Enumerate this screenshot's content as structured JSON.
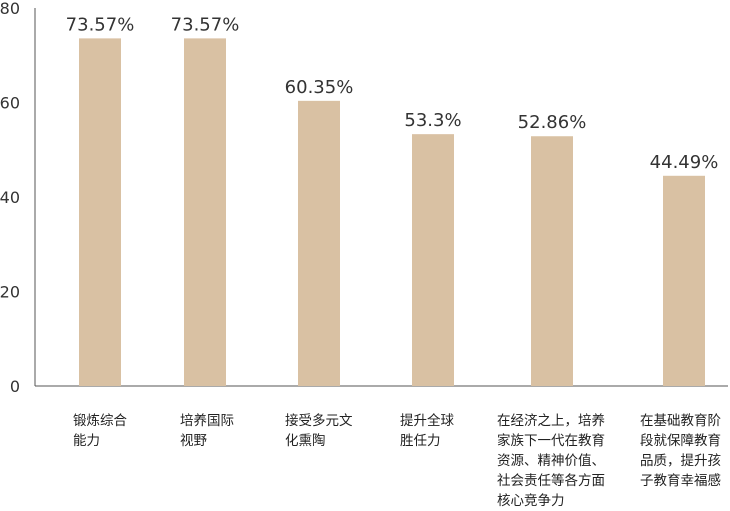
{
  "chart_data": {
    "type": "bar",
    "categories": [
      "锻炼综合能力",
      "培养国际视野",
      "接受多元文化熏陶",
      "提升全球胜任力",
      "在经济之上，培养家族下一代在教育资源、精神价值、社会责任等各方面核心竞争力",
      "在基础教育阶段就保障教育品质，提升孩子教育幸福感"
    ],
    "values": [
      73.57,
      73.57,
      60.35,
      53.3,
      52.86,
      44.49
    ],
    "value_labels": [
      "73.57%",
      "73.57%",
      "60.35%",
      "53.3%",
      "52.86%",
      "44.49%"
    ],
    "ylim": [
      0,
      80
    ],
    "yticks": [
      "0",
      "20",
      "40",
      "60",
      "80"
    ],
    "title": "",
    "xlabel": "",
    "ylabel": "",
    "grid": false,
    "colors": {
      "bar": "#d9c1a3",
      "axis": "#555555"
    }
  }
}
